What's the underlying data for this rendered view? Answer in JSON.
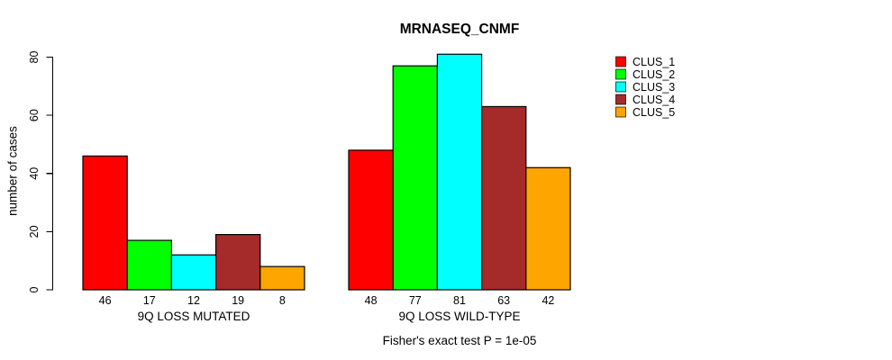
{
  "chart_data": {
    "type": "bar",
    "title": "MRNASEQ_CNMF",
    "ylabel": "number of cases",
    "xlabel": "",
    "ylim": [
      0,
      80
    ],
    "yticks": [
      0,
      20,
      40,
      60,
      80
    ],
    "grid": false,
    "legend_position": "right-outside",
    "bar_value_labels": true,
    "categories": [
      "9Q LOSS MUTATED",
      "9Q LOSS WILD-TYPE"
    ],
    "series": [
      {
        "name": "CLUS_1",
        "color": "#ff0000",
        "values": [
          46,
          48
        ]
      },
      {
        "name": "CLUS_2",
        "color": "#00ff00",
        "values": [
          17,
          77
        ]
      },
      {
        "name": "CLUS_3",
        "color": "#00ffff",
        "values": [
          12,
          81
        ]
      },
      {
        "name": "CLUS_4",
        "color": "#a52a2a",
        "values": [
          19,
          63
        ]
      },
      {
        "name": "CLUS_5",
        "color": "#ffa500",
        "values": [
          8,
          42
        ]
      }
    ],
    "annotation": "Fisher's exact test P = 1e-05"
  }
}
